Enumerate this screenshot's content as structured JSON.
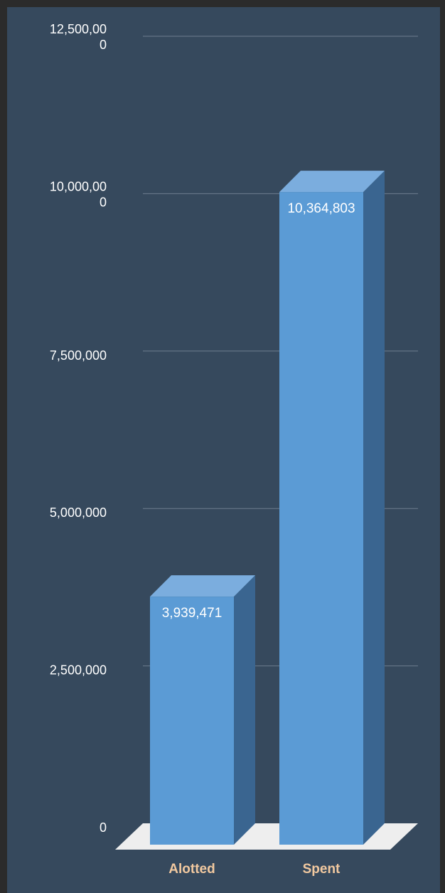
{
  "chart_data": {
    "type": "bar",
    "categories": [
      "Alotted",
      "Spent"
    ],
    "values": [
      3939471,
      10364803
    ],
    "data_labels": [
      "3,939,471",
      "10,364,803"
    ],
    "y_ticks": [
      {
        "value": 0,
        "label": [
          "0"
        ]
      },
      {
        "value": 2500000,
        "label": [
          "2,500,000"
        ]
      },
      {
        "value": 5000000,
        "label": [
          "5,000,000"
        ]
      },
      {
        "value": 7500000,
        "label": [
          "7,500,000"
        ]
      },
      {
        "value": 10000000,
        "label": [
          "10,000,00",
          "0"
        ]
      },
      {
        "value": 12500000,
        "label": [
          "12,500,00",
          "0"
        ]
      }
    ],
    "ylim": [
      0,
      12500000
    ],
    "title": "",
    "xlabel": "",
    "ylabel": "",
    "grid": true,
    "legend": "none",
    "style": "3d-column",
    "colors": {
      "bar_front": "#5b9bd5",
      "bar_top": "#7badde",
      "bar_side": "#3a6590",
      "floor": "#eeeeee",
      "grid": "#6d7d8e",
      "tick_text": "#ffffff",
      "category_text": "#f2c9a0",
      "background": "#36495d",
      "frame": "#2b2b2b"
    }
  }
}
